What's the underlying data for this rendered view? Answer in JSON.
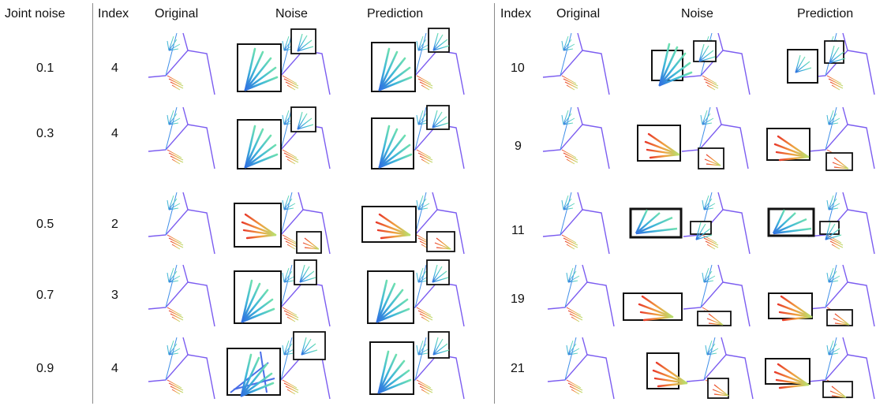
{
  "headers": {
    "joint_noise": "Joint noise",
    "index": "Index",
    "original": "Original",
    "noise": "Noise",
    "prediction": "Prediction"
  },
  "rows": [
    {
      "joint_noise": "0.1",
      "left_index": "4",
      "right_index": "10"
    },
    {
      "joint_noise": "0.3",
      "left_index": "4",
      "right_index": "9"
    },
    {
      "joint_noise": "0.5",
      "left_index": "2",
      "right_index": "11"
    },
    {
      "joint_noise": "0.7",
      "left_index": "3",
      "right_index": "19"
    },
    {
      "joint_noise": "0.9",
      "left_index": "4",
      "right_index": "21"
    }
  ],
  "colors": {
    "skeleton": "#7b5cf0",
    "upper_hand": "#35b6d8",
    "lower_hand": "#e8503a",
    "zoom_box": "#111111",
    "divider": "#8a8a8a"
  }
}
